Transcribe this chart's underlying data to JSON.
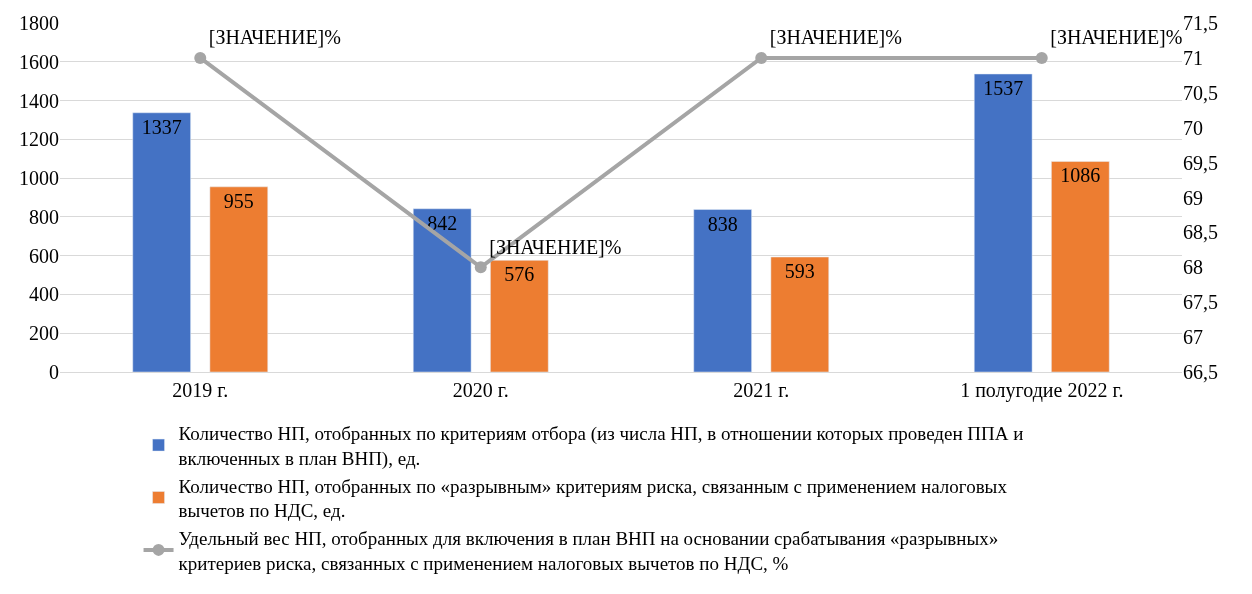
{
  "chart_data": {
    "type": "bar",
    "categories": [
      "2019 г.",
      "2020 г.",
      "2021 г.",
      "1 полугодие 2022 г."
    ],
    "series": [
      {
        "name": "Количество НП, отобранных по критериям отбора (из числа НП, в отношении которых проведен ППА и включенных в план ВНП), ед.",
        "color": "#4472c4",
        "values": [
          1337,
          842,
          838,
          1537
        ]
      },
      {
        "name": "Количество НП, отобранных по «разрывным» критериям риска, связанным с применением налоговых вычетов по НДС, ед.",
        "color": "#ed7d31",
        "values": [
          955,
          576,
          593,
          1086
        ]
      },
      {
        "name": "Удельный вес НП, отобранных для включения в план ВНП на основании срабатывания «разрывных» критериев риска, связанных с применением налоговых вычетов по НДС, %",
        "type": "line",
        "axis": "y2",
        "color": "#a5a5a5",
        "values": [
          71,
          68,
          71,
          71
        ],
        "value_labels": [
          "[ЗНАЧЕНИЕ]%",
          "[ЗНАЧЕНИЕ]%",
          "[ЗНАЧЕНИЕ]%",
          "[ЗНАЧЕНИЕ]%"
        ],
        "marker": "circle",
        "line_style": "solid"
      }
    ],
    "data_labels": true,
    "ylim": [
      0,
      1800
    ],
    "yticks": [
      0,
      200,
      400,
      600,
      800,
      1000,
      1200,
      1400,
      1600,
      1800
    ],
    "y2lim": [
      66.5,
      71.5
    ],
    "y2ticks": [
      {
        "value": 66.5,
        "label": "66,5"
      },
      67,
      {
        "value": 67.5,
        "label": "67,5"
      },
      68,
      {
        "value": 68.5,
        "label": "68,5"
      },
      69,
      {
        "value": 69.5,
        "label": "69,5"
      },
      70,
      {
        "value": 70.5,
        "label": "70,5"
      },
      71,
      {
        "value": 71.5,
        "label": "71,5"
      }
    ],
    "grid": "y",
    "legend": "bottom"
  }
}
